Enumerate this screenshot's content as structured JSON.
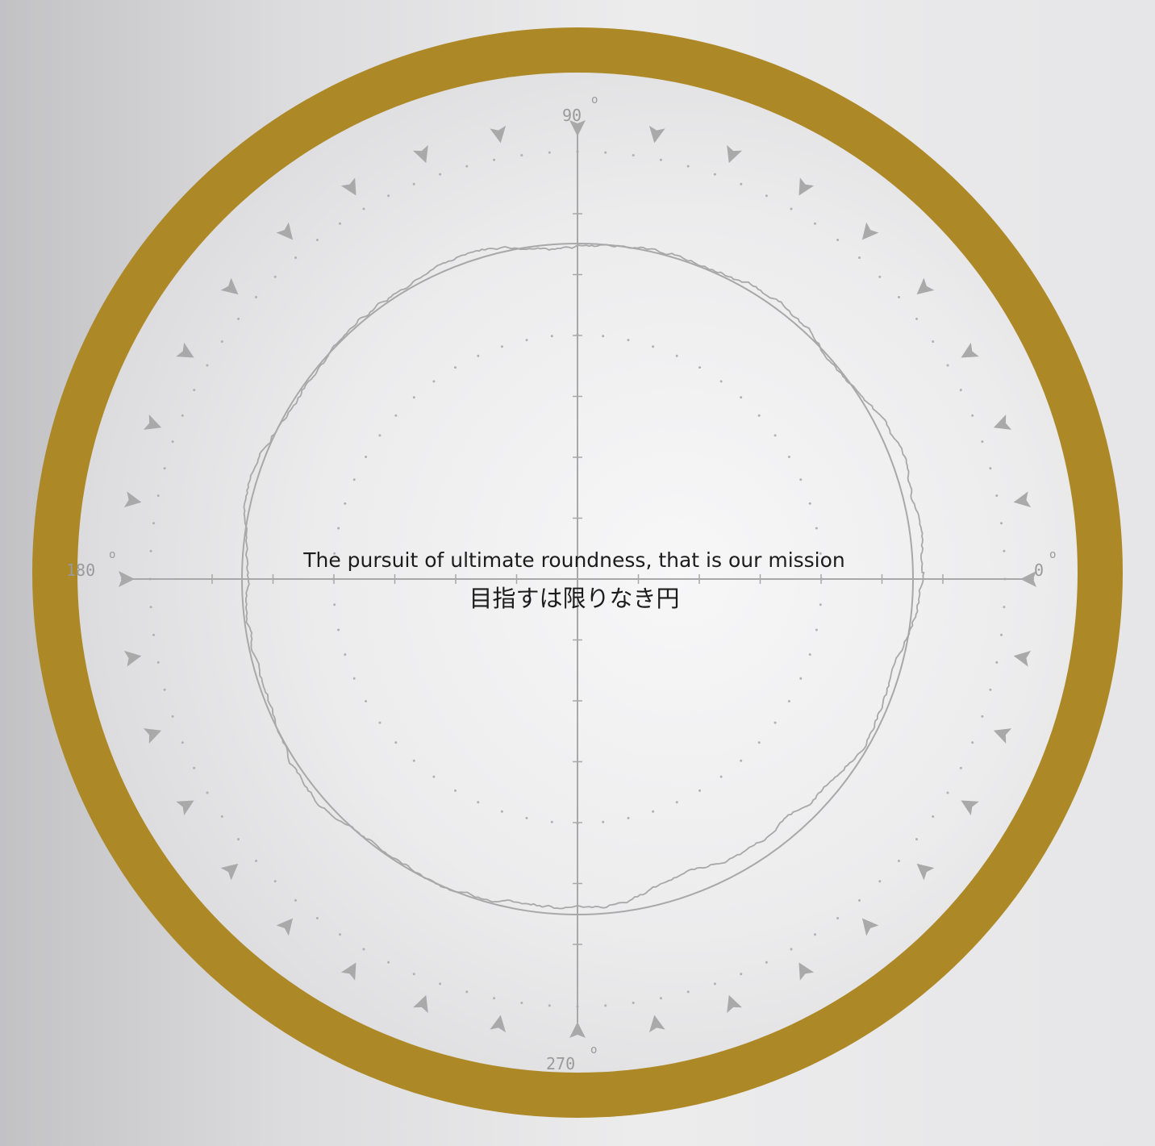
{
  "frame": {
    "ring_color": "#AD8826",
    "face_color": "#efeff0",
    "trace_color": "#a6a6a6"
  },
  "mission": {
    "english": "The pursuit of ultimate roundness, that is our mission",
    "japanese": "目指すは限りなき円"
  },
  "angle_labels": {
    "right": "0",
    "top": "90",
    "left": "180",
    "bottom": "270",
    "degree_symbol": "o"
  },
  "markers": {
    "count": 36,
    "icon": "triangle-marker-icon"
  }
}
